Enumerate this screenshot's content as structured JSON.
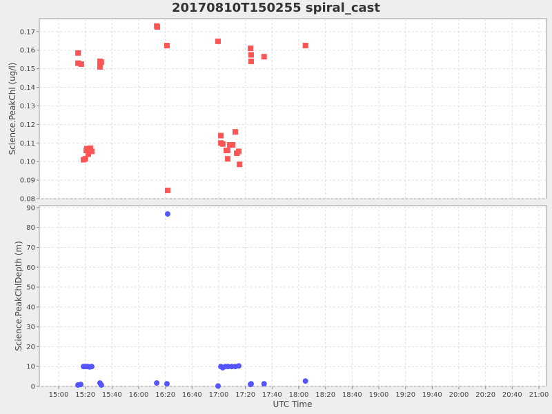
{
  "chart_data": [
    {
      "type": "scatter",
      "title": "20170810T150255 spiral_cast",
      "xlabel": "UTC Time",
      "ylabel": "Science.PeakChl (ug/l)",
      "x_units": "minutes since 15:00",
      "xlim": [
        -7,
        297
      ],
      "ylim": [
        0.08,
        0.177
      ],
      "yticks": [
        "0.08",
        "0.09",
        "0.10",
        "0.11",
        "0.12",
        "0.13",
        "0.14",
        "0.15",
        "0.16",
        "0.17"
      ],
      "color": "#ff5555",
      "marker": "square",
      "grid": true,
      "x": [
        14.5,
        14.5,
        17,
        31,
        32,
        31,
        18.6,
        20,
        20.7,
        21.2,
        22.2,
        23.8,
        24.8,
        73.5,
        74,
        81.2,
        81.7,
        119.5,
        121.6,
        121.6,
        123,
        125.7,
        126.7,
        126.7,
        128.3,
        130.4,
        132.4,
        133.5,
        135,
        135.5,
        143.8,
        144.3,
        144.3,
        154,
        185
      ],
      "y": [
        0.1585,
        0.153,
        0.1525,
        0.154,
        0.1535,
        0.151,
        0.101,
        0.1015,
        0.106,
        0.107,
        0.104,
        0.1072,
        0.1055,
        0.173,
        0.1725,
        0.1625,
        0.0845,
        0.1648,
        0.114,
        0.11,
        0.1095,
        0.106,
        0.106,
        0.1015,
        0.109,
        0.109,
        0.116,
        0.1045,
        0.1055,
        0.0985,
        0.161,
        0.1575,
        0.154,
        0.1565,
        0.1625
      ]
    },
    {
      "type": "scatter",
      "xlabel": "UTC Time",
      "ylabel": "Science.PeakChlDepth (m)",
      "x_units": "minutes since 15:00",
      "xlim": [
        -7,
        297
      ],
      "ylim": [
        0,
        91
      ],
      "yticks": [
        "0",
        "10",
        "20",
        "30",
        "40",
        "50",
        "60",
        "70",
        "80",
        "90"
      ],
      "color": "#5555ff",
      "marker": "circle",
      "grid": true,
      "x": [
        14.5,
        16.5,
        18.6,
        20,
        21.7,
        23.3,
        24.8,
        31,
        32,
        73.5,
        81.2,
        81.7,
        119.5,
        121.6,
        123,
        125,
        127,
        129.7,
        132.4,
        135,
        143.8,
        144.3,
        154,
        185
      ],
      "y": [
        0.7,
        1,
        10,
        10,
        10,
        9.8,
        10,
        1.7,
        0.7,
        1.7,
        1.3,
        86.8,
        0.2,
        10,
        9.4,
        10,
        10,
        10,
        10,
        10.3,
        1,
        1.3,
        1.3,
        2.7
      ]
    }
  ],
  "xticks": [
    "15:00",
    "15:20",
    "15:40",
    "16:00",
    "16:20",
    "16:40",
    "17:00",
    "17:20",
    "17:40",
    "18:00",
    "18:20",
    "18:40",
    "19:00",
    "19:20",
    "19:40",
    "20:00",
    "20:20",
    "20:40",
    "21:00"
  ]
}
